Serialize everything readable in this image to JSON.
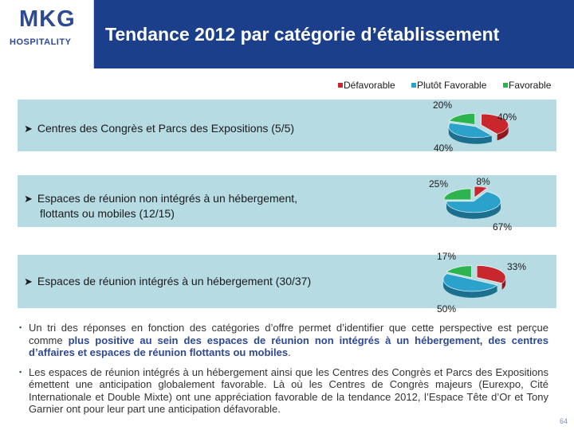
{
  "header": {
    "logo_primary": "MKG",
    "logo_secondary": "HOSPITALITY",
    "title": "Tendance 2012 par catégorie d’établissement"
  },
  "colors": {
    "header_bg": "#1c3f8c",
    "band_bg": "#b7dbe3",
    "defavorable": "#c8282d",
    "plutot_favorable": "#2aa2cc",
    "favorable": "#2eb44f"
  },
  "legend": [
    {
      "label": "Défavorable",
      "color": "#c8282d"
    },
    {
      "label": "Plutôt Favorable",
      "color": "#2aa2cc"
    },
    {
      "label": "Favorable",
      "color": "#2eb44f"
    }
  ],
  "rows": [
    {
      "label_lines": [
        "Centres des Congrès et Parcs des Expositions (5/5)"
      ]
    },
    {
      "label_lines": [
        "Espaces de réunion non intégrés à un hébergement,",
        "flottants ou mobiles (12/15)"
      ]
    },
    {
      "label_lines": [
        "Espaces de réunion intégrés à un hébergement (30/37)"
      ]
    }
  ],
  "chart_data": [
    {
      "type": "pie",
      "title": "Centres des Congrès et Parcs des Expositions (5/5)",
      "categories": [
        "Défavorable",
        "Plutôt Favorable",
        "Favorable"
      ],
      "values": [
        40,
        40,
        20
      ],
      "data_labels": [
        "40%",
        "40%",
        "20%"
      ]
    },
    {
      "type": "pie",
      "title": "Espaces de réunion non intégrés à un hébergement, flottants ou mobiles (12/15)",
      "categories": [
        "Défavorable",
        "Plutôt Favorable",
        "Favorable"
      ],
      "values": [
        8,
        67,
        25
      ],
      "data_labels": [
        "8%",
        "67%",
        "25%"
      ]
    },
    {
      "type": "pie",
      "title": "Espaces de réunion intégrés à un hébergement (30/37)",
      "categories": [
        "Défavorable",
        "Plutôt Favorable",
        "Favorable"
      ],
      "values": [
        33,
        50,
        17
      ],
      "data_labels": [
        "33%",
        "50%",
        "17%"
      ]
    }
  ],
  "notes": [
    {
      "before": "Un tri des réponses en fonction des catégories d’offre permet d’identifier que cette perspective est perçue comme ",
      "highlight": "plus positive au sein des espaces de réunion non intégrés à un hébergement, des centres d’affaires et espaces de réunion flottants ou mobiles",
      "after": "."
    },
    {
      "before": "Les espaces de réunion intégrés à un hébergement ainsi que les Centres des Congrès et Parcs des Expositions émettent une anticipation globalement favorable. Là où les Centres de Congrès majeurs (Eurexpo, Cité Internationale et Double Mixte) ont une appréciation favorable de la tendance 2012, l’Espace Tête d’Or et Tony Garnier ont pour leur part une anticipation défavorable.",
      "highlight": "",
      "after": ""
    }
  ],
  "page_number": "64"
}
